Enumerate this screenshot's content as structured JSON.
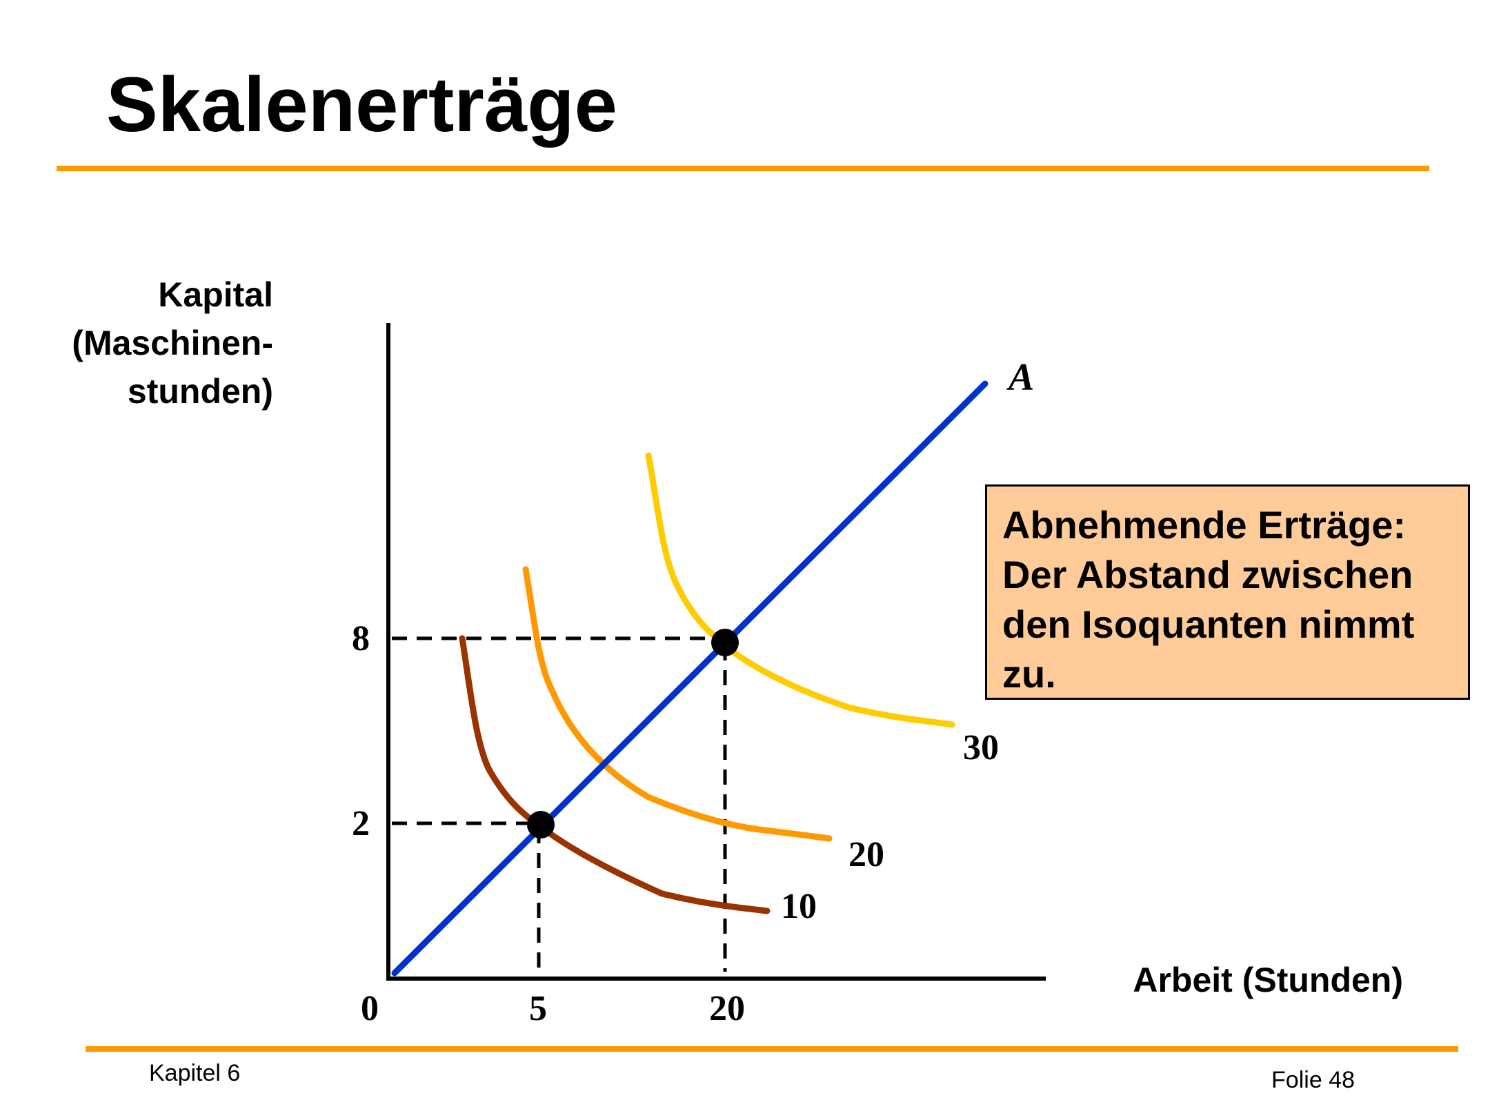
{
  "slide": {
    "title": "Skalenerträge",
    "accent_color": "#FF9900",
    "footer_left": "Kapitel 6",
    "footer_right": "Folie 48"
  },
  "diagram": {
    "y_axis_label": [
      "Kapital",
      "(Maschinen-",
      "stunden)"
    ],
    "x_axis_label": "Arbeit (Stunden)",
    "origin_label": "0",
    "x_ticks": [
      "5",
      "20"
    ],
    "y_ticks": [
      "8",
      "2"
    ],
    "ray_label": "A",
    "ray_color": "#0033CC",
    "isoquants": [
      {
        "label": "10",
        "color": "#993300"
      },
      {
        "label": "20",
        "color": "#FF9900"
      },
      {
        "label": "30",
        "color": "#FFCC00"
      }
    ],
    "note": {
      "lines": [
        "Abnehmende Erträge:",
        "Der Abstand zwischen",
        "den Isoquanten nimmt",
        "zu."
      ],
      "fill": "#FFCC99"
    }
  }
}
